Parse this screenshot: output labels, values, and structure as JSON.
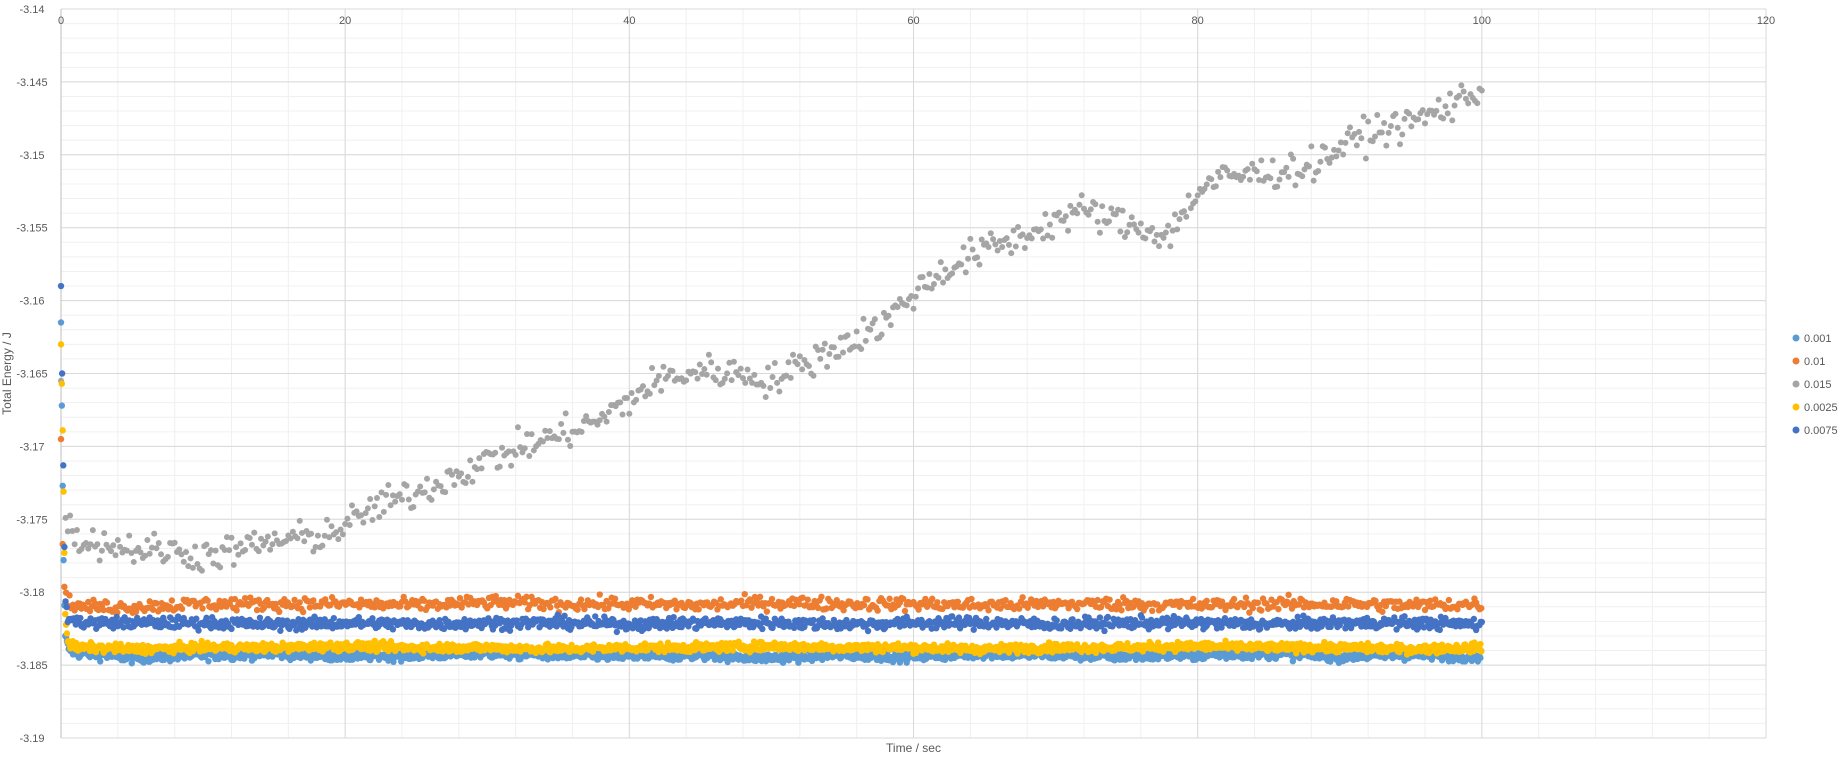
{
  "chart_data": {
    "type": "scatter",
    "title": "",
    "xlabel": "Time / sec",
    "ylabel": "Total Energy / J",
    "xlim": [
      0,
      120
    ],
    "ylim": [
      -3.19,
      -3.14
    ],
    "x_ticks": [
      0,
      20,
      40,
      60,
      80,
      100,
      120
    ],
    "y_ticks": [
      -3.14,
      -3.145,
      -3.15,
      -3.155,
      -3.16,
      -3.165,
      -3.17,
      -3.175,
      -3.18,
      -3.185,
      -3.19
    ],
    "x_tick_labels": [
      "0",
      "20",
      "40",
      "60",
      "80",
      "100",
      "120"
    ],
    "y_tick_labels": [
      "-3.14",
      "-3.145",
      "-3.15",
      "-3.155",
      "-3.16",
      "-3.165",
      "-3.17",
      "-3.175",
      "-3.18",
      "-3.185",
      "-3.19"
    ],
    "grid": true,
    "minor_grid": true,
    "legend_position": "right",
    "series": [
      {
        "name": "0.001",
        "color": "#5B9BD5",
        "x": [
          0,
          0.1,
          0.2,
          0.3,
          0.5,
          1,
          2,
          5,
          10,
          15,
          20,
          25,
          30,
          35,
          40,
          45,
          50,
          55,
          60,
          65,
          70,
          75,
          80,
          85,
          90,
          95,
          100
        ],
        "y": [
          -3.1615,
          -3.171,
          -3.1795,
          -3.183,
          -3.1838,
          -3.1842,
          -3.1842,
          -3.1845,
          -3.1843,
          -3.1842,
          -3.1844,
          -3.1843,
          -3.1842,
          -3.1843,
          -3.1844,
          -3.1843,
          -3.1845,
          -3.1843,
          -3.1844,
          -3.1842,
          -3.1843,
          -3.1844,
          -3.1843,
          -3.1842,
          -3.1844,
          -3.1843,
          -3.1844
        ]
      },
      {
        "name": "0.01",
        "color": "#ED7D31",
        "x": [
          0,
          0.1,
          0.2,
          0.5,
          1,
          2,
          5,
          10,
          15,
          20,
          25,
          30,
          35,
          40,
          45,
          50,
          55,
          60,
          65,
          70,
          75,
          80,
          85,
          90,
          95,
          100
        ],
        "y": [
          -3.1695,
          -3.176,
          -3.1795,
          -3.1805,
          -3.181,
          -3.181,
          -3.181,
          -3.1808,
          -3.1808,
          -3.1808,
          -3.1809,
          -3.1807,
          -3.1808,
          -3.1808,
          -3.1809,
          -3.1807,
          -3.1808,
          -3.1808,
          -3.1809,
          -3.1808,
          -3.1808,
          -3.1809,
          -3.1808,
          -3.1808,
          -3.1809,
          -3.1808
        ]
      },
      {
        "name": "0.015",
        "color": "#A5A5A5",
        "x": [
          0,
          0.1,
          0.2,
          0.5,
          1,
          2,
          5,
          8,
          10,
          12,
          15,
          18,
          20,
          22,
          25,
          28,
          30,
          32,
          35,
          38,
          40,
          42,
          45,
          48,
          50,
          52,
          55,
          58,
          60,
          62,
          65,
          68,
          70,
          72,
          75,
          78,
          80,
          82,
          85,
          88,
          90,
          92,
          95,
          98,
          100
        ],
        "y": [
          -3.1655,
          -3.171,
          -3.1745,
          -3.1755,
          -3.1762,
          -3.1765,
          -3.177,
          -3.1772,
          -3.1775,
          -3.1772,
          -3.1765,
          -3.1762,
          -3.1755,
          -3.1742,
          -3.1732,
          -3.1718,
          -3.171,
          -3.1702,
          -3.1692,
          -3.1682,
          -3.1668,
          -3.1655,
          -3.1648,
          -3.165,
          -3.1655,
          -3.1645,
          -3.163,
          -3.1615,
          -3.1595,
          -3.158,
          -3.1565,
          -3.1555,
          -3.1545,
          -3.1538,
          -3.1548,
          -3.1555,
          -3.1525,
          -3.1515,
          -3.1512,
          -3.1508,
          -3.1495,
          -3.1485,
          -3.1478,
          -3.1465,
          -3.1455
        ]
      },
      {
        "name": "0.0025",
        "color": "#FFC000",
        "x": [
          0,
          0.1,
          0.2,
          0.3,
          0.5,
          1,
          2,
          5,
          10,
          15,
          20,
          25,
          30,
          35,
          40,
          45,
          50,
          55,
          60,
          65,
          70,
          75,
          80,
          85,
          90,
          95,
          100
        ],
        "y": [
          -3.163,
          -3.1675,
          -3.1745,
          -3.1815,
          -3.1835,
          -3.1838,
          -3.1838,
          -3.1839,
          -3.1838,
          -3.1838,
          -3.1837,
          -3.1838,
          -3.1838,
          -3.1839,
          -3.1838,
          -3.1838,
          -3.1837,
          -3.1838,
          -3.1838,
          -3.1839,
          -3.1838,
          -3.1838,
          -3.1837,
          -3.1838,
          -3.1838,
          -3.1839,
          -3.1838
        ]
      },
      {
        "name": "0.0075",
        "color": "#4472C4",
        "x": [
          0,
          0.1,
          0.2,
          0.3,
          0.5,
          1,
          2,
          5,
          10,
          15,
          20,
          25,
          30,
          35,
          40,
          45,
          50,
          55,
          60,
          65,
          70,
          75,
          80,
          85,
          90,
          95,
          100
        ],
        "y": [
          -3.159,
          -3.1665,
          -3.1745,
          -3.1805,
          -3.1818,
          -3.182,
          -3.1821,
          -3.1821,
          -3.1821,
          -3.1822,
          -3.1821,
          -3.1822,
          -3.1821,
          -3.1821,
          -3.1822,
          -3.1821,
          -3.1821,
          -3.1822,
          -3.1821,
          -3.1821,
          -3.1822,
          -3.1821,
          -3.1821,
          -3.1822,
          -3.1821,
          -3.1821,
          -3.1822
        ]
      }
    ]
  }
}
